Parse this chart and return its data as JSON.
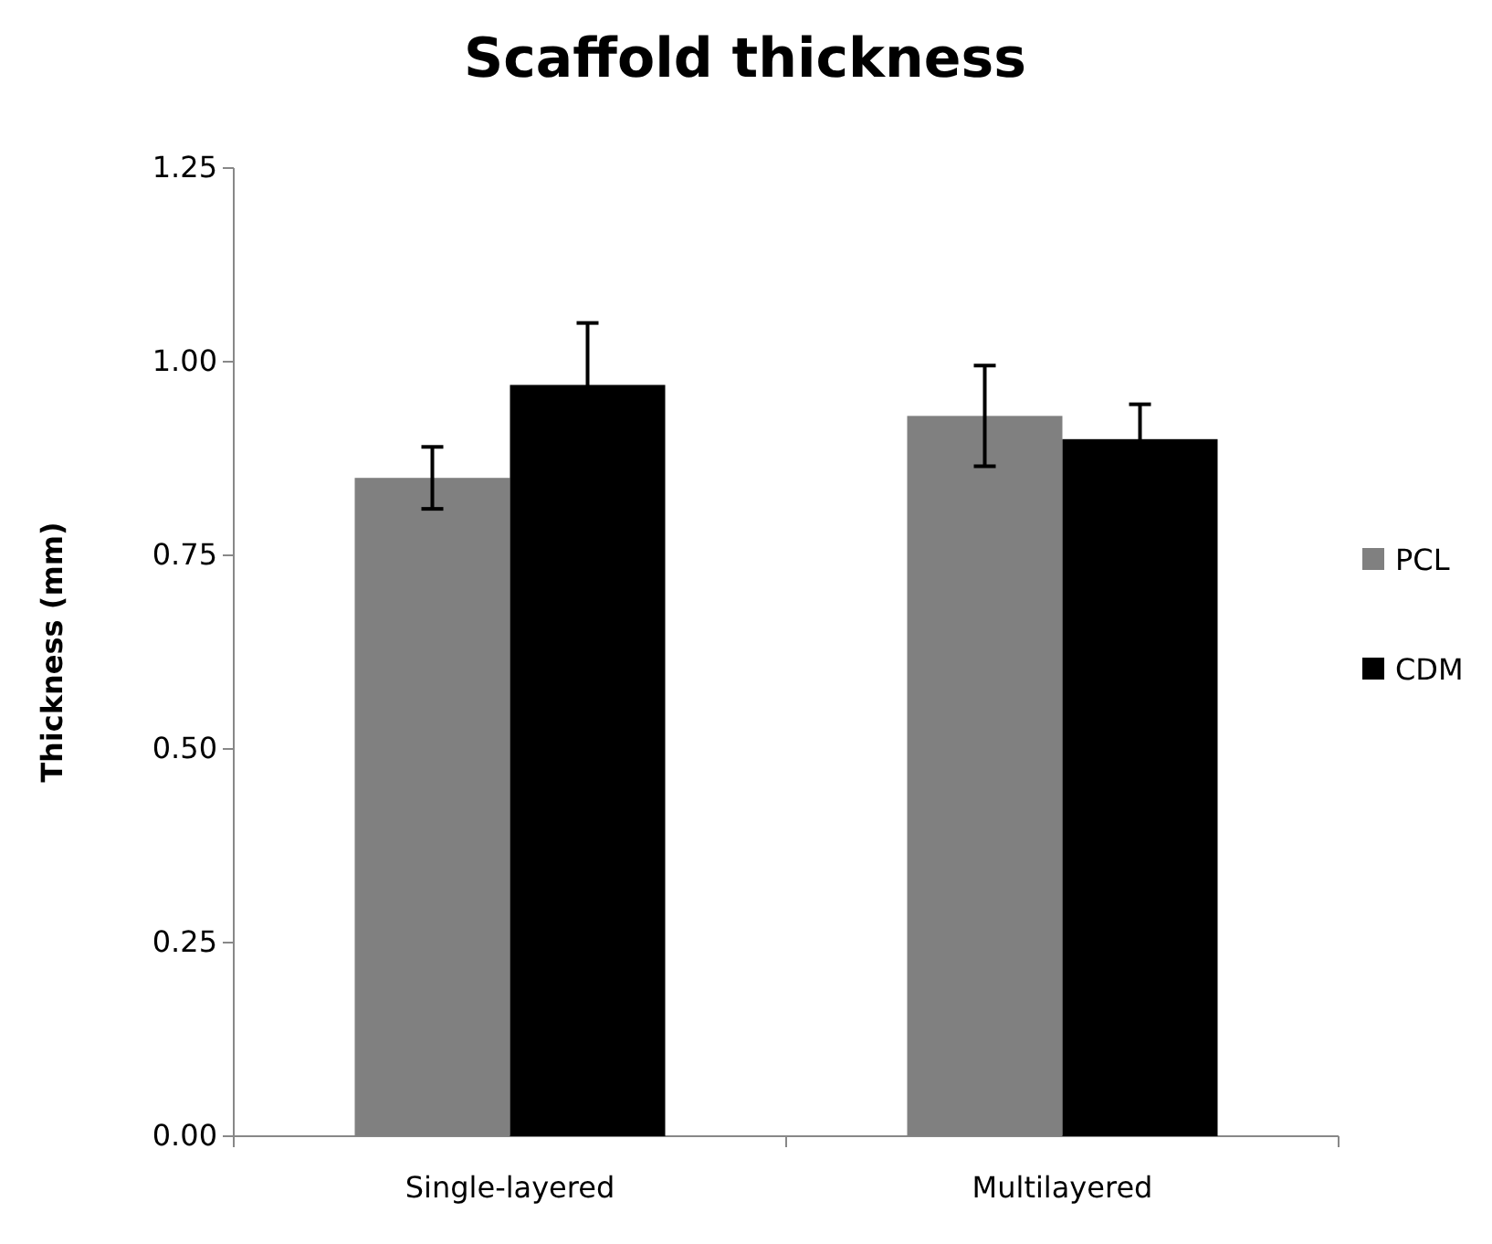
{
  "chart_data": {
    "type": "bar",
    "title": "Scaffold thickness",
    "ylabel": "Thickness (mm)",
    "categories": [
      "Single-layered",
      "Multilayered"
    ],
    "series": [
      {
        "name": "PCL",
        "color": "#808080",
        "values": [
          0.85,
          0.93
        ],
        "errors": [
          0.04,
          0.065
        ]
      },
      {
        "name": "CDM",
        "color": "#000000",
        "values": [
          0.97,
          0.9
        ],
        "errors": [
          0.08,
          0.045
        ]
      }
    ],
    "ylim": [
      0,
      1.25
    ],
    "yticks": [
      {
        "value": 0,
        "label": "0.00"
      },
      {
        "value": 0.25,
        "label": "0.25"
      },
      {
        "value": 0.5,
        "label": "0.50"
      },
      {
        "value": 0.75,
        "label": "0.75"
      },
      {
        "value": 1,
        "label": "1.00"
      },
      {
        "value": 1.25,
        "label": "1.25"
      }
    ],
    "grid": false,
    "legend": "right"
  }
}
